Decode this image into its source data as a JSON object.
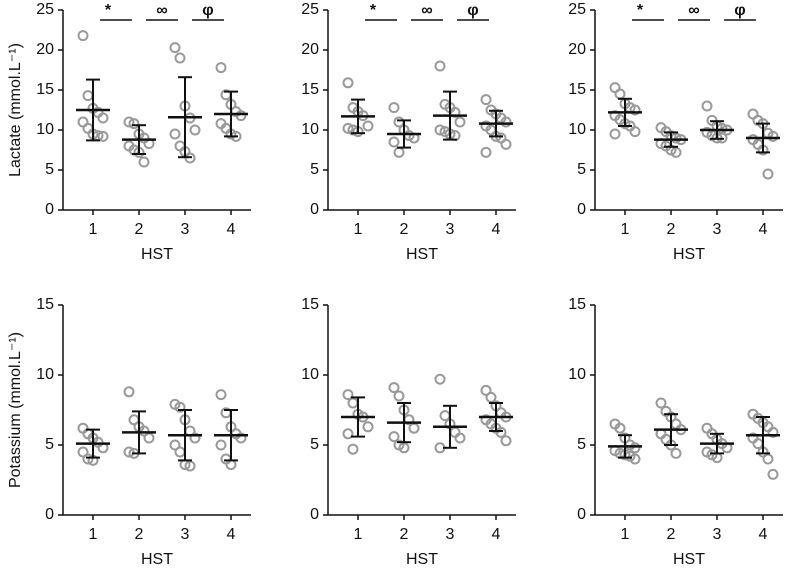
{
  "chart_data": [
    {
      "type": "dot",
      "ylabel": "Lactate (mmol.L⁻¹)",
      "xlabel": "HST",
      "categories": [
        "1",
        "2",
        "3",
        "4"
      ],
      "ylim": [
        0,
        25
      ],
      "yticks": [
        0,
        5,
        10,
        15,
        20,
        25
      ],
      "annotations": [
        "*",
        "∞",
        "φ"
      ],
      "color": "#999999",
      "groups": [
        {
          "points": [
            21.8,
            14.3,
            12.7,
            12.2,
            11.5,
            11,
            10.2,
            9.5,
            9.3,
            9.2
          ],
          "mean": 12.5,
          "sd": 3.8
        },
        {
          "points": [
            11,
            10.8,
            9.5,
            9,
            8.3,
            8,
            7.5,
            7.2,
            6
          ],
          "mean": 8.8,
          "sd": 1.8
        },
        {
          "points": [
            20.3,
            19,
            13,
            11.5,
            10,
            9.5,
            8,
            7.3,
            6.5
          ],
          "mean": 11.6,
          "sd": 5
        },
        {
          "points": [
            17.8,
            14.4,
            13.2,
            12.3,
            11.8,
            10.8,
            10.2,
            9.5,
            9.2
          ],
          "mean": 12,
          "sd": 2.8
        }
      ]
    },
    {
      "type": "dot",
      "xlabel": "HST",
      "categories": [
        "1",
        "2",
        "3",
        "4"
      ],
      "ylim": [
        0,
        25
      ],
      "yticks": [
        0,
        5,
        10,
        15,
        20,
        25
      ],
      "annotations": [
        "*",
        "∞",
        "φ"
      ],
      "color": "#999999",
      "groups": [
        {
          "points": [
            15.9,
            12.8,
            12.3,
            11.8,
            10.5,
            10.2,
            10,
            9.8
          ],
          "mean": 11.7,
          "sd": 2.1
        },
        {
          "points": [
            12.8,
            11,
            10,
            9.3,
            9,
            8.5,
            7.2
          ],
          "mean": 9.5,
          "sd": 1.7
        },
        {
          "points": [
            18,
            13.2,
            12.8,
            12.2,
            11,
            10,
            9.8,
            9.5,
            9.3
          ],
          "mean": 11.8,
          "sd": 3
        },
        {
          "points": [
            13.8,
            12.5,
            12,
            11.5,
            11,
            10.5,
            10,
            9.2,
            9,
            8.2,
            7.2
          ],
          "mean": 10.8,
          "sd": 1.6
        }
      ]
    },
    {
      "type": "dot",
      "xlabel": "HST",
      "categories": [
        "1",
        "2",
        "3",
        "4"
      ],
      "ylim": [
        0,
        25
      ],
      "yticks": [
        0,
        5,
        10,
        15,
        20,
        25
      ],
      "annotations": [
        "*",
        "∞",
        "φ"
      ],
      "color": "#999999",
      "groups": [
        {
          "points": [
            15.3,
            14.5,
            13.3,
            12.8,
            12.5,
            11.8,
            11.3,
            10.8,
            10.5,
            9.8,
            9.5
          ],
          "mean": 12.2,
          "sd": 1.7
        },
        {
          "points": [
            10.3,
            9.8,
            9.3,
            9,
            8.8,
            8.3,
            8,
            7.5,
            7.2
          ],
          "mean": 8.8,
          "sd": 0.9
        },
        {
          "points": [
            13,
            11.2,
            10.5,
            10.2,
            10,
            9.7,
            9.3,
            9,
            9
          ],
          "mean": 10,
          "sd": 1.1
        },
        {
          "points": [
            12,
            11.2,
            10.8,
            9.6,
            9.2,
            8.8,
            8.2,
            7.5,
            4.5
          ],
          "mean": 9,
          "sd": 1.8
        }
      ]
    },
    {
      "type": "dot",
      "ylabel": "Potassium (mmol.L⁻¹)",
      "xlabel": "HST",
      "categories": [
        "1",
        "2",
        "3",
        "4"
      ],
      "ylim": [
        0,
        15
      ],
      "yticks": [
        0,
        5,
        10,
        15
      ],
      "color": "#999999",
      "groups": [
        {
          "points": [
            6.2,
            5.8,
            5.5,
            5.2,
            4.8,
            4.5,
            4,
            3.9
          ],
          "mean": 5.1,
          "sd": 1
        },
        {
          "points": [
            8.8,
            6.8,
            6.3,
            6,
            5.5,
            4.5,
            4.4
          ],
          "mean": 5.9,
          "sd": 1.5
        },
        {
          "points": [
            7.9,
            7.7,
            6.8,
            6,
            5.5,
            5,
            4.5,
            3.6,
            3.5
          ],
          "mean": 5.7,
          "sd": 1.8
        },
        {
          "points": [
            8.6,
            7.3,
            6.3,
            5.8,
            5.5,
            5,
            4,
            3.6
          ],
          "mean": 5.7,
          "sd": 1.8
        }
      ]
    },
    {
      "type": "dot",
      "xlabel": "HST",
      "categories": [
        "1",
        "2",
        "3",
        "4"
      ],
      "ylim": [
        0,
        15
      ],
      "yticks": [
        0,
        5,
        10,
        15
      ],
      "color": "#999999",
      "groups": [
        {
          "points": [
            8.6,
            8,
            7.2,
            7,
            6.3,
            5.8,
            4.7
          ],
          "mean": 7,
          "sd": 1.4
        },
        {
          "points": [
            9.1,
            8.5,
            7.5,
            6.8,
            6.2,
            5.6,
            5,
            4.8
          ],
          "mean": 6.6,
          "sd": 1.4
        },
        {
          "points": [
            9.7,
            7.1,
            6.5,
            5.9,
            5.5,
            4.8
          ],
          "mean": 6.3,
          "sd": 1.5
        },
        {
          "points": [
            8.9,
            8.4,
            7.8,
            7.3,
            7,
            6.8,
            6.5,
            6.2,
            5.9,
            5.3
          ],
          "mean": 7,
          "sd": 1
        }
      ]
    },
    {
      "type": "dot",
      "xlabel": "HST",
      "categories": [
        "1",
        "2",
        "3",
        "4"
      ],
      "ylim": [
        0,
        15
      ],
      "yticks": [
        0,
        5,
        10,
        15
      ],
      "color": "#999999",
      "groups": [
        {
          "points": [
            6.5,
            6.2,
            5.5,
            5,
            4.8,
            4.6,
            4.4,
            4.3,
            4.2,
            4
          ],
          "mean": 4.9,
          "sd": 0.8
        },
        {
          "points": [
            8,
            7.4,
            7,
            6.5,
            6.1,
            5.8,
            5.4,
            5,
            4.4
          ],
          "mean": 6.1,
          "sd": 1.1
        },
        {
          "points": [
            6.2,
            5.8,
            5.4,
            5.1,
            4.8,
            4.5,
            4.3,
            4.1
          ],
          "mean": 5.1,
          "sd": 0.7
        },
        {
          "points": [
            7.2,
            6.9,
            6.6,
            6.3,
            5.9,
            5.5,
            5.1,
            4.5,
            4,
            2.9
          ],
          "mean": 5.7,
          "sd": 1.3
        }
      ]
    }
  ]
}
